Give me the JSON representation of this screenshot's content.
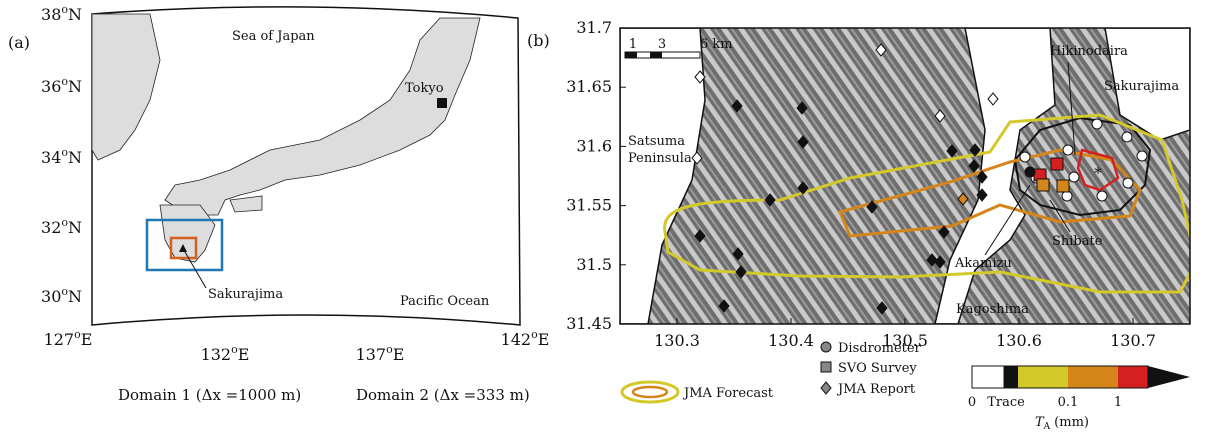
{
  "panel_a": {
    "tag": "(a)",
    "lat_labels": [
      {
        "num": "38",
        "sup": "o",
        "hem": "N"
      },
      {
        "num": "36",
        "sup": "o",
        "hem": "N"
      },
      {
        "num": "34",
        "sup": "o",
        "hem": "N"
      },
      {
        "num": "32",
        "sup": "o",
        "hem": "N"
      },
      {
        "num": "30",
        "sup": "o",
        "hem": "N"
      }
    ],
    "lon_labels": [
      {
        "num": "127",
        "sup": "o",
        "hem": "E"
      },
      {
        "num": "132",
        "sup": "o",
        "hem": "E"
      },
      {
        "num": "137",
        "sup": "o",
        "hem": "E"
      },
      {
        "num": "142",
        "sup": "o",
        "hem": "E"
      }
    ],
    "places": {
      "sea": "Sea of Japan",
      "city": "Tokyo",
      "volcano": "Sakurajima",
      "ocean": "Pacific Ocean"
    },
    "domains": [
      {
        "label": "Domain 1 (Δx =1000 m)",
        "color": "#1f77b4"
      },
      {
        "label": "Domain 2 (Δx =333 m)",
        "color": "#d95f1e"
      }
    ]
  },
  "panel_b": {
    "tag": "(b)",
    "xlim": [
      130.25,
      130.75
    ],
    "ylim": [
      31.45,
      31.7
    ],
    "xticks": [
      130.3,
      130.4,
      130.5,
      130.6,
      130.7
    ],
    "yticks": [
      31.45,
      31.5,
      31.55,
      31.6,
      31.65,
      31.7
    ],
    "scale_labels": [
      "1",
      "3",
      "6 km"
    ],
    "places": {
      "hiki": "Hikinodaira",
      "saku": "Sakurajima",
      "sat1": "Satsuma",
      "sat2": "Peninsula",
      "aka": "Akamizu",
      "shi": "Shibate",
      "kago": "Kagoshima"
    },
    "legend": {
      "forecast": "JMA Forecast",
      "disdrometer": "Disdrometer",
      "svo": "SVO Survey",
      "jma": "JMA Report"
    },
    "colorbar": {
      "labels": [
        "0",
        "Trace",
        "0.1",
        "1"
      ],
      "symbol": "T",
      "sub": "A",
      "unit": "(mm)"
    }
  }
}
